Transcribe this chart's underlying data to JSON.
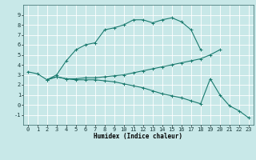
{
  "curve1_x": [
    0,
    1,
    2,
    3,
    4,
    5,
    6,
    7,
    8,
    9,
    10,
    11,
    12,
    13,
    14,
    15,
    16,
    17,
    18
  ],
  "curve1_y": [
    3.3,
    3.1,
    2.5,
    3.0,
    4.4,
    5.5,
    6.0,
    6.2,
    7.5,
    7.7,
    8.0,
    8.5,
    8.5,
    8.2,
    8.5,
    8.7,
    8.3,
    7.5,
    5.5
  ],
  "curve2_x": [
    2,
    3,
    4,
    5,
    6,
    7,
    8,
    9,
    10,
    11,
    12,
    13,
    14,
    15,
    16,
    17,
    18,
    19,
    20
  ],
  "curve2_y": [
    2.5,
    2.8,
    2.6,
    2.6,
    2.7,
    2.7,
    2.8,
    2.9,
    3.0,
    3.2,
    3.4,
    3.6,
    3.8,
    4.0,
    4.2,
    4.4,
    4.6,
    5.0,
    5.5
  ],
  "curve3_x": [
    2,
    3,
    4,
    5,
    6,
    7,
    8,
    9,
    10,
    11,
    12,
    13,
    14,
    15,
    16,
    17,
    18,
    19,
    20,
    21,
    22,
    23
  ],
  "curve3_y": [
    2.5,
    2.8,
    2.6,
    2.5,
    2.5,
    2.5,
    2.4,
    2.3,
    2.1,
    1.9,
    1.7,
    1.4,
    1.1,
    0.9,
    0.7,
    0.4,
    0.1,
    2.6,
    1.0,
    -0.1,
    -0.6,
    -1.3
  ],
  "color": "#1a7a6e",
  "bg_color": "#c8e8e8",
  "grid_color": "#ffffff",
  "xlabel": "Humidex (Indice chaleur)",
  "xlim": [
    -0.5,
    23.5
  ],
  "ylim": [
    -2,
    10
  ],
  "xticks": [
    0,
    1,
    2,
    3,
    4,
    5,
    6,
    7,
    8,
    9,
    10,
    11,
    12,
    13,
    14,
    15,
    16,
    17,
    18,
    19,
    20,
    21,
    22,
    23
  ],
  "yticks": [
    -1,
    0,
    1,
    2,
    3,
    4,
    5,
    6,
    7,
    8,
    9
  ],
  "axis_fontsize": 5.5,
  "tick_fontsize": 5.0,
  "linewidth": 0.8,
  "markersize": 3.0
}
